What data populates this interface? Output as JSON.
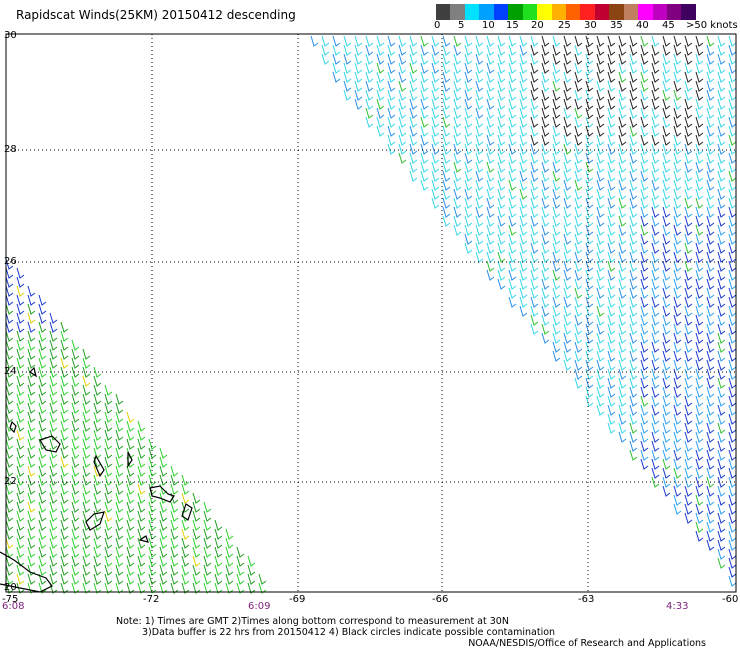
{
  "title": "Rapidscat Winds(25KM) 20150412 descending",
  "colorbar": {
    "colors": [
      "#404040",
      "#808080",
      "#00e0ff",
      "#00a0ff",
      "#0040ff",
      "#00a000",
      "#20e020",
      "#ffff00",
      "#ffb000",
      "#ff6000",
      "#ff2020",
      "#c00030",
      "#8b4513",
      "#c08060",
      "#ff00ff",
      "#c000c0",
      "#800080",
      "#400060"
    ],
    "labels": [
      "0",
      "5",
      "10",
      "15",
      "20",
      "25",
      "30",
      "35",
      "40",
      "45",
      ">50 knots"
    ]
  },
  "map": {
    "lon_range": [
      -75,
      -60
    ],
    "lat_range": [
      20,
      30
    ],
    "lon_ticks": [
      "-75",
      "-72",
      "-69",
      "-66",
      "-63",
      "-60"
    ],
    "lat_ticks": [
      "30",
      "28",
      "26",
      "24",
      "22",
      "20"
    ],
    "time_labels": [
      "6:08",
      "6:09",
      "4:33"
    ],
    "grid": true
  },
  "notes": {
    "line1": "Note: 1) Times are GMT 2)Times along bottom correspond to measurement at 30N",
    "line2": "3)Data buffer is 22 hrs from 20150412 4) Black circles indicate possible contamination"
  },
  "credit": "NOAA/NESDIS/Office of Research and Applications"
}
